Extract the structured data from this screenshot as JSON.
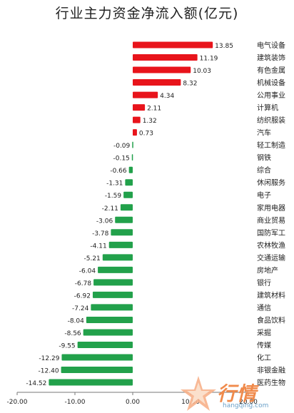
{
  "chart_data": {
    "type": "bar",
    "orientation": "horizontal",
    "title": "行业主力资金净流入额(亿元)",
    "xlim": [
      -20,
      20
    ],
    "x_ticks": [
      "-20.00",
      "-10.00",
      "0.00",
      "10.00",
      "20.00"
    ],
    "categories": [
      "电气设备",
      "建筑装饰",
      "有色金属",
      "机械设备",
      "公用事业",
      "计算机",
      "纺织服装",
      "汽车",
      "轻工制造",
      "钢铁",
      "综合",
      "休闲服务",
      "电子",
      "家用电器",
      "商业贸易",
      "国防军工",
      "农林牧渔",
      "交通运输",
      "房地产",
      "银行",
      "建筑材料",
      "通信",
      "食品饮料",
      "采掘",
      "传媒",
      "化工",
      "非银金融",
      "医药生物"
    ],
    "values": [
      13.85,
      11.19,
      10.03,
      8.32,
      4.34,
      2.11,
      1.32,
      0.73,
      -0.09,
      -0.15,
      -0.66,
      -1.31,
      -1.59,
      -2.11,
      -3.06,
      -3.78,
      -4.11,
      -5.21,
      -6.04,
      -6.78,
      -6.92,
      -7.24,
      -8.04,
      -8.56,
      -9.55,
      -12.29,
      -12.4,
      -14.52
    ],
    "value_labels": [
      "13.85",
      "11.19",
      "10.03",
      "8.32",
      "4.34",
      "2.11",
      "1.32",
      "0.73",
      "-0.09",
      "-0.15",
      "-0.66",
      "-1.31",
      "-1.59",
      "-2.11",
      "-3.06",
      "-3.78",
      "-4.11",
      "-5.21",
      "-6.04",
      "-6.78",
      "-6.92",
      "-7.24",
      "-8.04",
      "-8.56",
      "-9.55",
      "-12.29",
      "-12.40",
      "-14.52"
    ],
    "colors": {
      "positive": "#e8141b",
      "negative": "#22a14b"
    },
    "grid": false
  },
  "watermark": {
    "main": "行情",
    "sub": "hangqing.com"
  }
}
